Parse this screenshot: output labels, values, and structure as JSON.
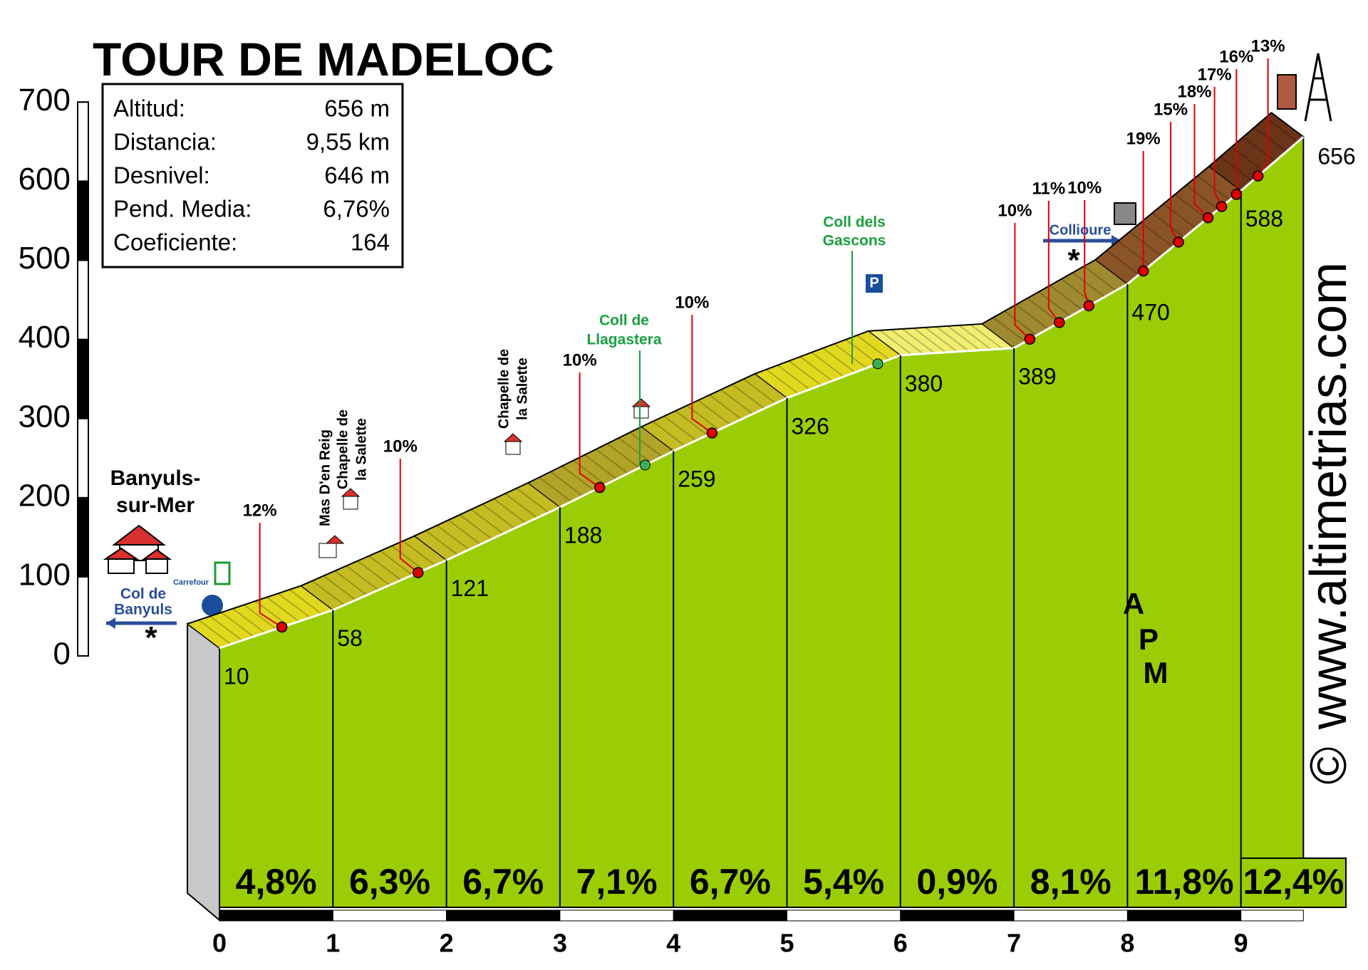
{
  "chart_data": {
    "type": "profile",
    "title": "TOUR DE MADELOC",
    "info": [
      [
        "Altitud:",
        "656 m"
      ],
      [
        "Distancia:",
        "9,55 km"
      ],
      [
        "Desnivel:",
        "646 m"
      ],
      [
        "Pend. Media:",
        "6,76%"
      ],
      [
        "Coeficiente:",
        "164"
      ]
    ],
    "x": [
      0,
      1,
      2,
      3,
      4,
      5,
      6,
      7,
      8,
      9,
      9.55
    ],
    "values": [
      10,
      58,
      121,
      188,
      259,
      326,
      380,
      389,
      470,
      588,
      656
    ],
    "xlim": [
      0,
      9.55
    ],
    "ylim": [
      0,
      700
    ],
    "xticks": [
      0,
      1,
      2,
      3,
      4,
      5,
      6,
      7,
      8,
      9
    ],
    "yticks": [
      0,
      100,
      200,
      300,
      400,
      500,
      600,
      700
    ],
    "color": "#9acd05",
    "segment_grades": {
      "values": [
        4.8,
        6.3,
        6.7,
        7.1,
        6.7,
        5.4,
        0.9,
        8.1,
        11.8,
        12.4
      ],
      "value_labels": [
        "4,8%",
        "6,3%",
        "6,7%",
        "7,1%",
        "6,7%",
        "5,4%",
        "0,9%",
        "8,1%",
        "11,8%",
        "12,4%"
      ]
    },
    "grade_flags": {
      "x": [
        0.55,
        1.75,
        3.35,
        4.34,
        7.14,
        7.4,
        7.66,
        8.14,
        8.45,
        8.71,
        8.83,
        8.96,
        9.15
      ],
      "values": [
        12,
        10,
        10,
        10,
        10,
        11,
        10,
        19,
        15,
        18,
        17,
        16,
        13
      ],
      "value_labels": [
        "12%",
        "10%",
        "10%",
        "10%",
        "10%",
        "11%",
        "10%",
        "19%",
        "15%",
        "18%",
        "17%",
        "16%",
        "13%"
      ]
    },
    "annotations": {
      "banyuls": [
        "Banyuls-",
        "sur-Mer"
      ],
      "col_banyuls": [
        "Col de",
        "Banyuls"
      ],
      "mas": "Mas D'en Reig",
      "chapelle_1": [
        "Chapelle de",
        "la Salette"
      ],
      "chapelle_2": [
        "Chapelle de",
        "la Salette"
      ],
      "llagastera": [
        "Coll de",
        "Llagastera"
      ],
      "gascons": [
        "Coll dels",
        "Gascons"
      ],
      "collioure": "Collioure",
      "carrefour": "Carrefour",
      "parking": "P"
    },
    "logo": [
      "A",
      "P",
      "M"
    ],
    "watermark": "www.altimetrias.com",
    "copyright": "©"
  }
}
